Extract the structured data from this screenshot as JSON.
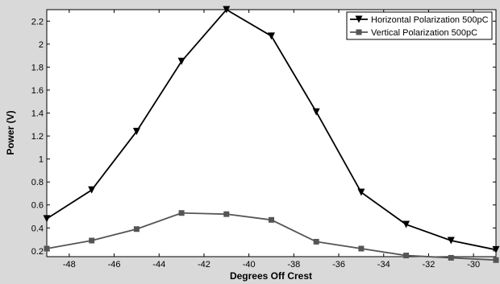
{
  "chart_data": {
    "type": "line",
    "title": "",
    "xlabel": "Degrees Off Crest",
    "ylabel": "Power (V)",
    "xlim": [
      -49,
      -29
    ],
    "ylim": [
      0.15,
      2.3
    ],
    "x_ticks": [
      -48,
      -46,
      -44,
      -42,
      -40,
      -38,
      -36,
      -34,
      -32,
      -30
    ],
    "y_ticks": [
      0.2,
      0.4,
      0.6,
      0.8,
      1,
      1.2,
      1.4,
      1.6,
      1.8,
      2,
      2.2
    ],
    "grid": false,
    "legend_position": "top-right",
    "x": [
      -49,
      -47,
      -45,
      -43,
      -41,
      -39,
      -37,
      -35,
      -33,
      -31,
      -29
    ],
    "series": [
      {
        "name": "Horizontal Polarization 500pC",
        "marker": "triangle-down",
        "color": "#000000",
        "values": [
          0.48,
          0.73,
          1.24,
          1.85,
          2.3,
          2.07,
          1.41,
          0.71,
          0.43,
          0.29,
          0.21
        ]
      },
      {
        "name": "Vertical Polarization 500pC",
        "marker": "square",
        "color": "#555555",
        "values": [
          0.22,
          0.29,
          0.39,
          0.53,
          0.52,
          0.47,
          0.28,
          0.22,
          0.16,
          0.14,
          0.12
        ]
      }
    ]
  }
}
